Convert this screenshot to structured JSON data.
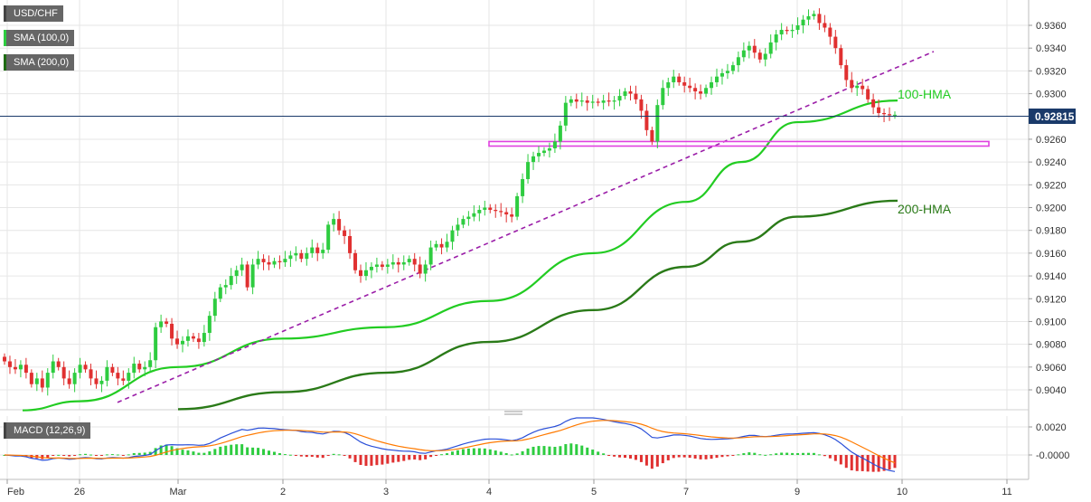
{
  "legend": {
    "symbol": "USD/CHF",
    "sma100": "SMA (100,0)",
    "sma200": "SMA (200,0)",
    "macd": "MACD (12,26,9)"
  },
  "price_axis": {
    "ticks": [
      "0.9360",
      "0.9340",
      "0.9320",
      "0.9300",
      "0.9260",
      "0.9240",
      "0.9220",
      "0.9200",
      "0.9180",
      "0.9160",
      "0.9140",
      "0.9120",
      "0.9100",
      "0.9080",
      "0.9060",
      "0.9040"
    ],
    "current_price": "0.92815"
  },
  "macd_axis": {
    "ticks": [
      "0.0020",
      "-0.0000"
    ]
  },
  "time_axis": {
    "ticks": [
      "Feb",
      "26",
      "Mar",
      "2",
      "3",
      "4",
      "5",
      "7",
      "9",
      "10",
      "11"
    ]
  },
  "annotations": {
    "hma100": "100-HMA",
    "hma200": "200-HMA"
  },
  "colors": {
    "bull": "#2ecc40",
    "bear": "#e03030",
    "hma100": "#22cc22",
    "hma200": "#2a7a18",
    "trendline": "#9b1ea8",
    "support": "#e040e0",
    "macd_line": "#2a4fd8",
    "signal_line": "#ff7a00",
    "price_line": "#1a3a6a"
  },
  "chart_data": {
    "type": "candlestick",
    "title": "USD/CHF",
    "ylim": [
      0.9025,
      0.9375
    ],
    "macd_ylim": [
      -0.002,
      0.0032
    ],
    "x_labels": [
      "Feb",
      "26",
      "Mar",
      "2",
      "3",
      "4",
      "5",
      "7",
      "9",
      "10",
      "11"
    ],
    "current_price": 0.92815,
    "support_zone": [
      0.9254,
      0.9258
    ],
    "trendline": {
      "from": {
        "x": "Feb 26",
        "y": 0.9029
      },
      "to": {
        "x": "Mar 10",
        "y": 0.9337
      }
    },
    "hma100": [
      [
        "Feb 25",
        0.9022
      ],
      [
        "Feb 26",
        0.903
      ],
      [
        "Mar 1",
        0.906
      ],
      [
        "Mar 2",
        0.9085
      ],
      [
        "Mar 3",
        0.9095
      ],
      [
        "Mar 4",
        0.9118
      ],
      [
        "Mar 5",
        0.916
      ],
      [
        "Mar 7",
        0.9205
      ],
      [
        "Mar 8",
        0.924
      ],
      [
        "Mar 9",
        0.9275
      ],
      [
        "Mar 10",
        0.9294
      ]
    ],
    "hma200": [
      [
        "Mar 1",
        0.9023
      ],
      [
        "Mar 2",
        0.9038
      ],
      [
        "Mar 3",
        0.9055
      ],
      [
        "Mar 4",
        0.9082
      ],
      [
        "Mar 5",
        0.911
      ],
      [
        "Mar 7",
        0.9148
      ],
      [
        "Mar 8",
        0.917
      ],
      [
        "Mar 9",
        0.9192
      ],
      [
        "Mar 10",
        0.9206
      ]
    ],
    "price_path": [
      0.9065,
      0.906,
      0.9058,
      0.9062,
      0.9055,
      0.9045,
      0.905,
      0.9042,
      0.9055,
      0.9065,
      0.906,
      0.905,
      0.9045,
      0.9055,
      0.9062,
      0.9058,
      0.905,
      0.9045,
      0.9048,
      0.906,
      0.9055,
      0.905,
      0.9048,
      0.9055,
      0.9063,
      0.9058,
      0.906,
      0.9066,
      0.9095,
      0.91,
      0.9098,
      0.9085,
      0.908,
      0.9083,
      0.9087,
      0.9085,
      0.9082,
      0.909,
      0.9105,
      0.912,
      0.913,
      0.9132,
      0.914,
      0.9145,
      0.915,
      0.913,
      0.915,
      0.9155,
      0.9152,
      0.915,
      0.9153,
      0.9152,
      0.9155,
      0.9158,
      0.916,
      0.9155,
      0.916,
      0.9165,
      0.916,
      0.9163,
      0.9185,
      0.919,
      0.918,
      0.9175,
      0.916,
      0.9145,
      0.914,
      0.9145,
      0.9148,
      0.915,
      0.9148,
      0.915,
      0.9152,
      0.915,
      0.9152,
      0.9155,
      0.915,
      0.9142,
      0.915,
      0.9165,
      0.9168,
      0.9165,
      0.917,
      0.918,
      0.9185,
      0.919,
      0.9192,
      0.9195,
      0.9198,
      0.92,
      0.9198,
      0.9197,
      0.9196,
      0.9194,
      0.9192,
      0.921,
      0.9225,
      0.924,
      0.9245,
      0.9248,
      0.925,
      0.9252,
      0.9258,
      0.9272,
      0.9292,
      0.9295,
      0.9293,
      0.9294,
      0.9292,
      0.9293,
      0.9292,
      0.9294,
      0.9293,
      0.9294,
      0.9298,
      0.9302,
      0.93,
      0.9295,
      0.9285,
      0.9268,
      0.9258,
      0.929,
      0.9305,
      0.931,
      0.9315,
      0.931,
      0.9307,
      0.9305,
      0.9302,
      0.93,
      0.9305,
      0.931,
      0.9315,
      0.9318,
      0.932,
      0.9325,
      0.9332,
      0.9338,
      0.9342,
      0.9336,
      0.933,
      0.9335,
      0.9345,
      0.9352,
      0.9356,
      0.9355,
      0.9356,
      0.936,
      0.9365,
      0.9368,
      0.937,
      0.9362,
      0.9358,
      0.935,
      0.934,
      0.9325,
      0.9312,
      0.9305,
      0.9307,
      0.9304,
      0.9295,
      0.9288,
      0.9283,
      0.9282,
      0.9281,
      0.92815
    ]
  }
}
